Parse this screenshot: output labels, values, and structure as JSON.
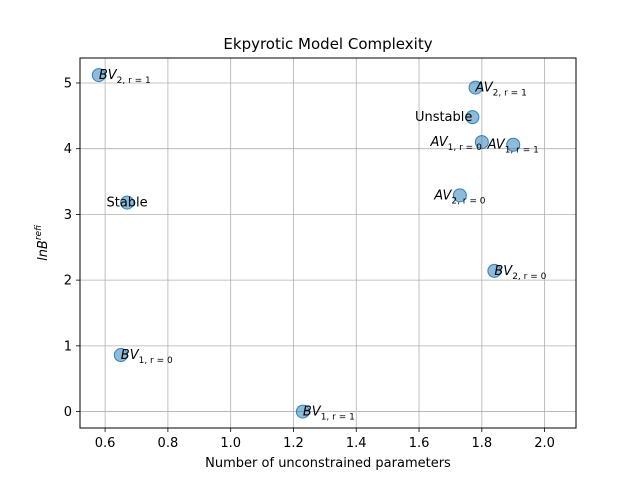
{
  "chart_data": {
    "type": "scatter",
    "title": "Ekpyrotic Model Complexity",
    "xlabel": "Number of unconstrained parameters",
    "ylabel": "lnB_i^ref",
    "xlim": [
      0.52,
      2.1
    ],
    "ylim": [
      -0.25,
      5.38
    ],
    "xticks": [
      0.6,
      0.8,
      1.0,
      1.2,
      1.4,
      1.6,
      1.8,
      2.0
    ],
    "xtick_labels": [
      "0.6",
      "0.8",
      "1.0",
      "1.2",
      "1.4",
      "1.6",
      "1.8",
      "2.0"
    ],
    "yticks": [
      0,
      1,
      2,
      3,
      4,
      5
    ],
    "ytick_labels": [
      "0",
      "1",
      "2",
      "3",
      "4",
      "5"
    ],
    "grid": true,
    "marker_color": "#1f77b4",
    "points": [
      {
        "x": 0.58,
        "y": 5.12,
        "label_main": "BV",
        "label_sub": "2, r = 1",
        "anchor": "start"
      },
      {
        "x": 1.78,
        "y": 4.93,
        "label_main": "AV",
        "label_sub": "2, r = 1",
        "anchor": "start"
      },
      {
        "x": 1.77,
        "y": 4.48,
        "label_main": "Unstable",
        "label_sub": "",
        "anchor": "end"
      },
      {
        "x": 1.8,
        "y": 4.1,
        "label_main": "AV",
        "label_sub": "1, r = 0",
        "anchor": "end"
      },
      {
        "x": 1.9,
        "y": 4.06,
        "label_main": "AV",
        "label_sub": "1, r = 1",
        "anchor": "middle"
      },
      {
        "x": 0.67,
        "y": 3.18,
        "label_main": "Stable",
        "label_sub": "",
        "anchor": "middle"
      },
      {
        "x": 1.73,
        "y": 3.29,
        "label_main": "AV",
        "label_sub": "2, r = 0",
        "anchor": "middle"
      },
      {
        "x": 1.84,
        "y": 2.14,
        "label_main": "BV",
        "label_sub": "2, r = 0",
        "anchor": "start"
      },
      {
        "x": 0.65,
        "y": 0.86,
        "label_main": "BV",
        "label_sub": "1, r = 0",
        "anchor": "start"
      },
      {
        "x": 1.23,
        "y": 0.0,
        "label_main": "BV",
        "label_sub": "1, r = 1",
        "anchor": "start"
      }
    ]
  }
}
